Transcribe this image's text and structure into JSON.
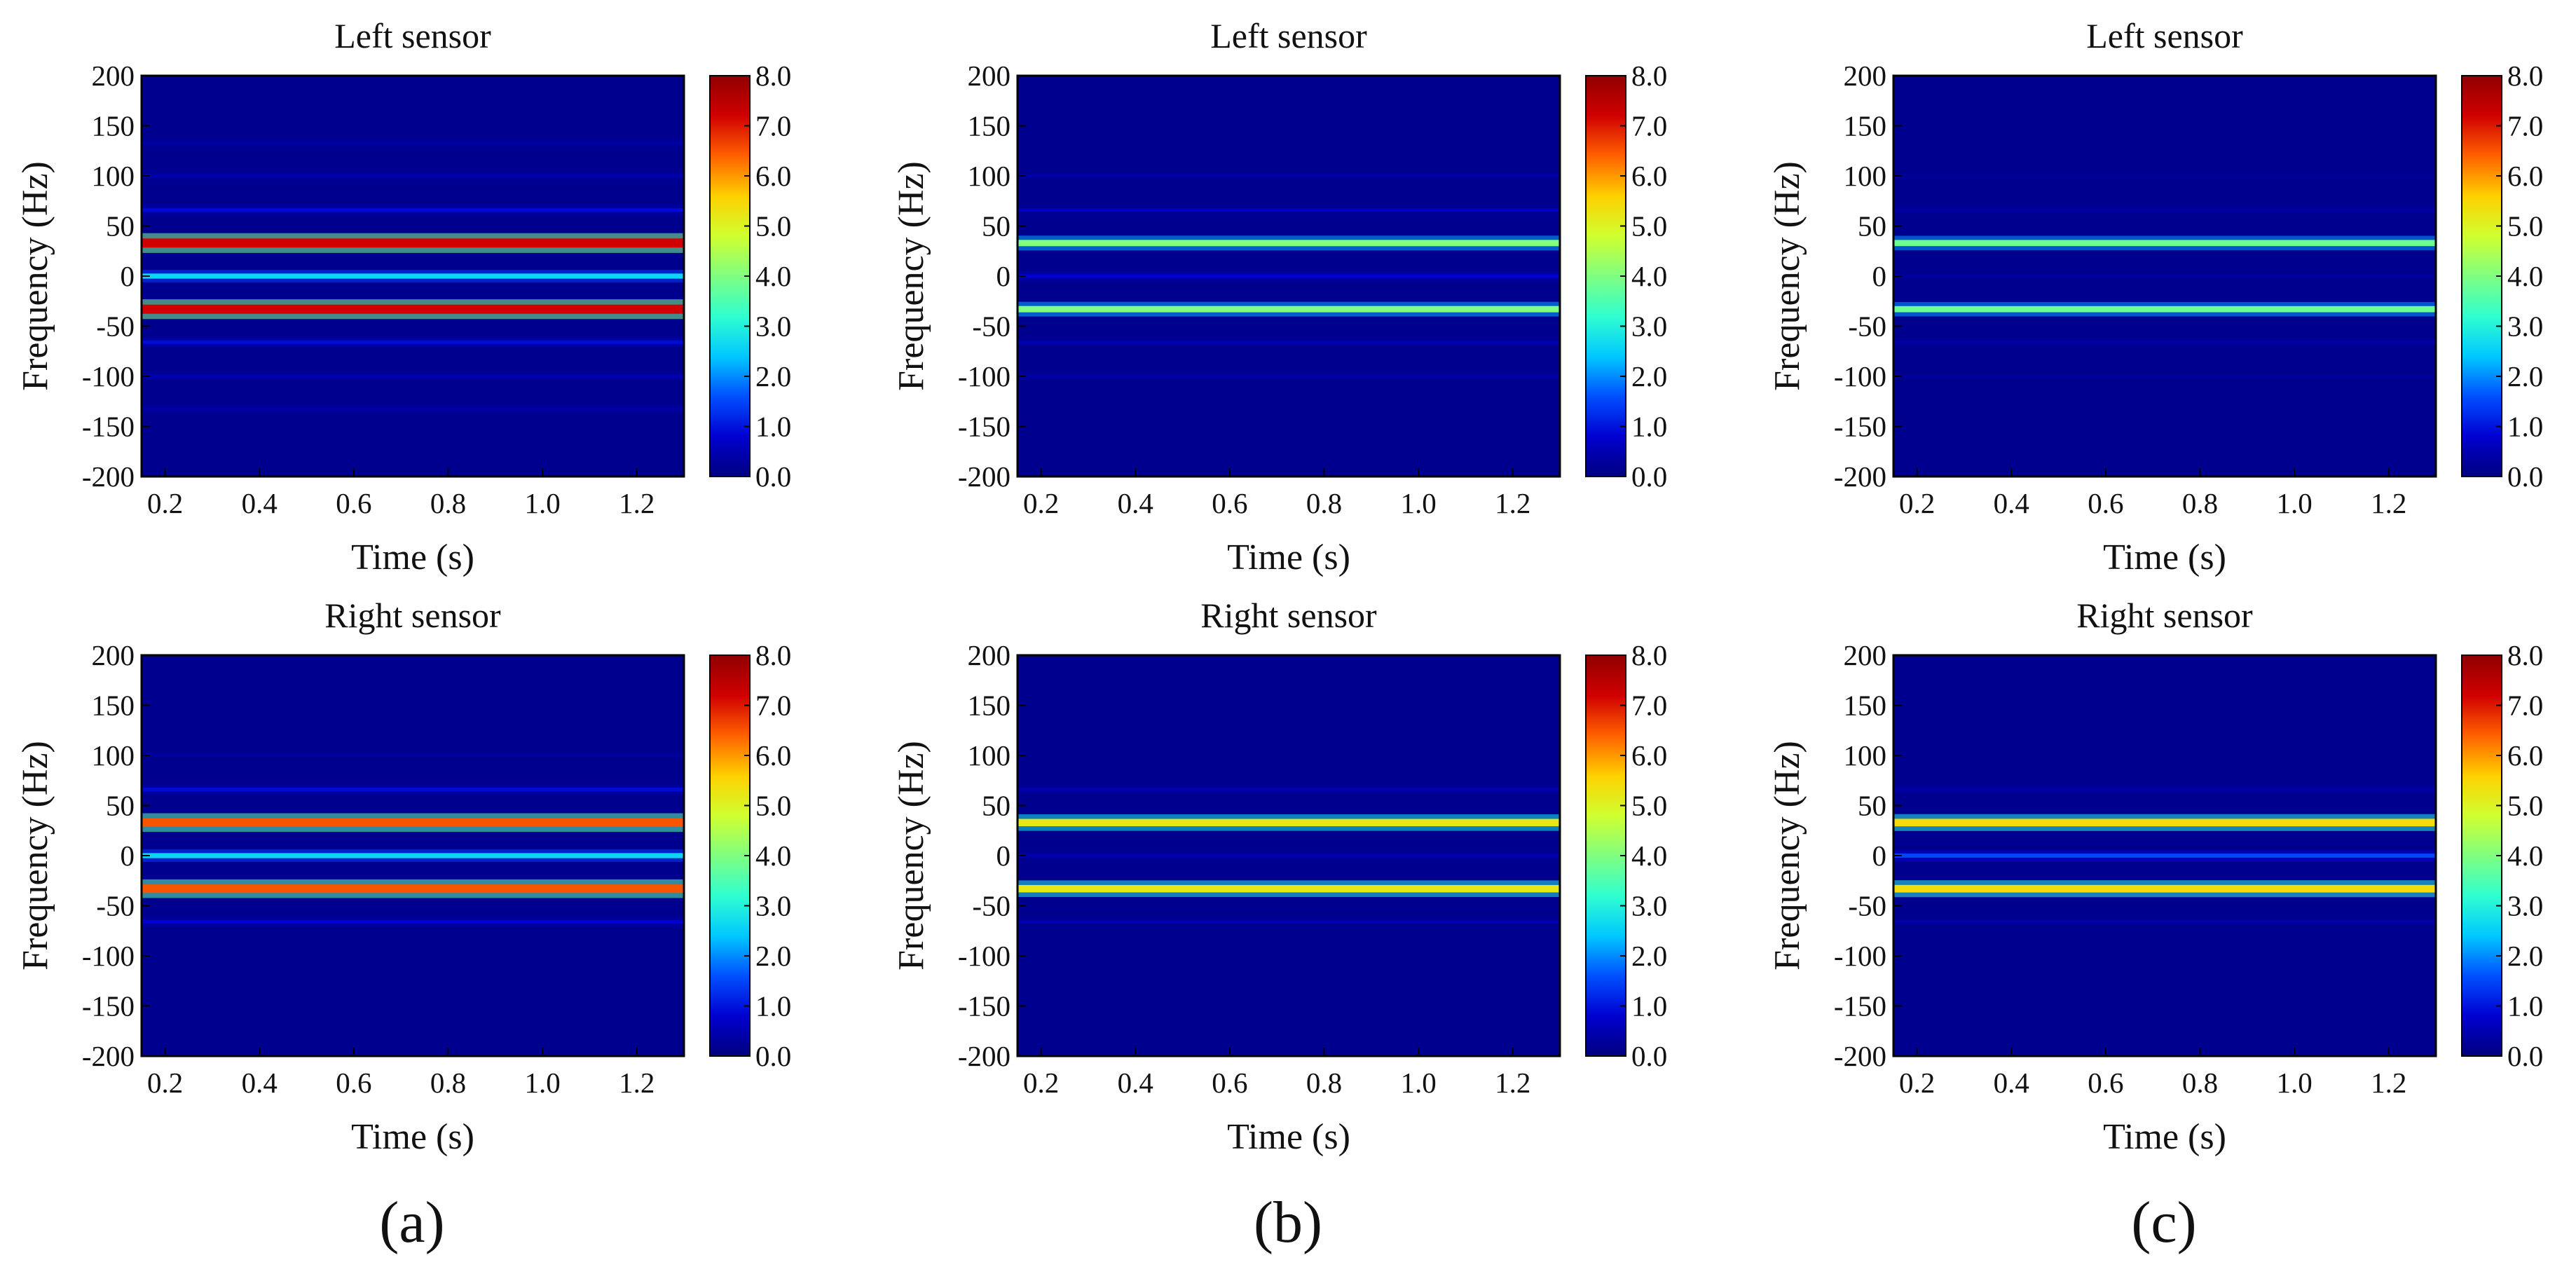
{
  "figure": {
    "panel_labels": [
      "(a)",
      "(b)",
      "(c)"
    ]
  },
  "colors": {
    "background": "#00008f",
    "colormap": [
      "#00007f",
      "#0000d0",
      "#0050ff",
      "#00c8ff",
      "#30ffd0",
      "#80ff80",
      "#d0ff30",
      "#ffd000",
      "#ff6000",
      "#d00000",
      "#900000"
    ]
  },
  "chart_data": [
    {
      "type": "heatmap",
      "id": "a-left",
      "column": "a",
      "row": "top",
      "title": "Left sensor",
      "xlabel": "Time (s)",
      "ylabel": "Frequency (Hz)",
      "xlim": [
        0.15,
        1.3
      ],
      "ylim": [
        -200,
        200
      ],
      "xticks": [
        "0.2",
        "0.4",
        "0.6",
        "0.8",
        "1.0",
        "1.2"
      ],
      "xtick_values": [
        0.2,
        0.4,
        0.6,
        0.8,
        1.0,
        1.2
      ],
      "yticks": [
        "200",
        "150",
        "100",
        "50",
        "0",
        "-50",
        "-100",
        "-150",
        "-200"
      ],
      "ytick_values": [
        200,
        150,
        100,
        50,
        0,
        -50,
        -100,
        -150,
        -200
      ],
      "colorbar": {
        "min": 0,
        "max": 8,
        "ticks": [
          "8.0",
          "7.0",
          "6.0",
          "5.0",
          "4.0",
          "3.0",
          "2.0",
          "1.0",
          "0.0"
        ],
        "tick_values": [
          8,
          7,
          6,
          5,
          4,
          3,
          2,
          1,
          0
        ]
      },
      "bands": [
        {
          "freq": 33,
          "value": 7.2
        },
        {
          "freq": 0,
          "value": 2.6
        },
        {
          "freq": -33,
          "value": 7.2
        },
        {
          "freq": 66,
          "value": 0.9
        },
        {
          "freq": -66,
          "value": 0.9
        },
        {
          "freq": 100,
          "value": 0.5
        },
        {
          "freq": -100,
          "value": 0.5
        },
        {
          "freq": 133,
          "value": 0.4
        },
        {
          "freq": -133,
          "value": 0.4
        }
      ]
    },
    {
      "type": "heatmap",
      "id": "b-left",
      "column": "b",
      "row": "top",
      "title": "Left sensor",
      "xlabel": "Time (s)",
      "ylabel": "Frequency (Hz)",
      "xlim": [
        0.15,
        1.3
      ],
      "ylim": [
        -200,
        200
      ],
      "xticks": [
        "0.2",
        "0.4",
        "0.6",
        "0.8",
        "1.0",
        "1.2"
      ],
      "xtick_values": [
        0.2,
        0.4,
        0.6,
        0.8,
        1.0,
        1.2
      ],
      "yticks": [
        "200",
        "150",
        "100",
        "50",
        "0",
        "-50",
        "-100",
        "-150",
        "-200"
      ],
      "ytick_values": [
        200,
        150,
        100,
        50,
        0,
        -50,
        -100,
        -150,
        -200
      ],
      "colorbar": {
        "min": 0,
        "max": 8,
        "ticks": [
          "8.0",
          "7.0",
          "6.0",
          "5.0",
          "4.0",
          "3.0",
          "2.0",
          "1.0",
          "0.0"
        ],
        "tick_values": [
          8,
          7,
          6,
          5,
          4,
          3,
          2,
          1,
          0
        ]
      },
      "bands": [
        {
          "freq": 33,
          "value": 4.0
        },
        {
          "freq": -33,
          "value": 4.0
        },
        {
          "freq": 0,
          "value": 0.8
        },
        {
          "freq": 66,
          "value": 0.6
        },
        {
          "freq": -66,
          "value": 0.5
        },
        {
          "freq": 100,
          "value": 0.4
        },
        {
          "freq": -100,
          "value": 0.4
        }
      ]
    },
    {
      "type": "heatmap",
      "id": "c-left",
      "column": "c",
      "row": "top",
      "title": "Left sensor",
      "xlabel": "Time (s)",
      "ylabel": "Frequency (Hz)",
      "xlim": [
        0.15,
        1.3
      ],
      "ylim": [
        -200,
        200
      ],
      "xticks": [
        "0.2",
        "0.4",
        "0.6",
        "0.8",
        "1.0",
        "1.2"
      ],
      "xtick_values": [
        0.2,
        0.4,
        0.6,
        0.8,
        1.0,
        1.2
      ],
      "yticks": [
        "200",
        "150",
        "100",
        "50",
        "0",
        "-50",
        "-100",
        "-150",
        "-200"
      ],
      "ytick_values": [
        200,
        150,
        100,
        50,
        0,
        -50,
        -100,
        -150,
        -200
      ],
      "colorbar": {
        "min": 0,
        "max": 8,
        "ticks": [
          "8.0",
          "7.0",
          "6.0",
          "5.0",
          "4.0",
          "3.0",
          "2.0",
          "1.0",
          "0.0"
        ],
        "tick_values": [
          8,
          7,
          6,
          5,
          4,
          3,
          2,
          1,
          0
        ]
      },
      "bands": [
        {
          "freq": 33,
          "value": 3.8
        },
        {
          "freq": -33,
          "value": 3.8
        },
        {
          "freq": 0,
          "value": 0.3
        },
        {
          "freq": 66,
          "value": 0.4
        },
        {
          "freq": -66,
          "value": 0.4
        },
        {
          "freq": 100,
          "value": 0.3
        },
        {
          "freq": -100,
          "value": 0.3
        }
      ]
    },
    {
      "type": "heatmap",
      "id": "a-right",
      "column": "a",
      "row": "bottom",
      "title": "Right sensor",
      "xlabel": "Time (s)",
      "ylabel": "Frequency (Hz)",
      "xlim": [
        0.15,
        1.3
      ],
      "ylim": [
        -200,
        200
      ],
      "xticks": [
        "0.2",
        "0.4",
        "0.6",
        "0.8",
        "1.0",
        "1.2"
      ],
      "xtick_values": [
        0.2,
        0.4,
        0.6,
        0.8,
        1.0,
        1.2
      ],
      "yticks": [
        "200",
        "150",
        "100",
        "50",
        "0",
        "-50",
        "-100",
        "-150",
        "-200"
      ],
      "ytick_values": [
        200,
        150,
        100,
        50,
        0,
        -50,
        -100,
        -150,
        -200
      ],
      "colorbar": {
        "min": 0,
        "max": 8,
        "ticks": [
          "8.0",
          "7.0",
          "6.0",
          "5.0",
          "4.0",
          "3.0",
          "2.0",
          "1.0",
          "0.0"
        ],
        "tick_values": [
          8,
          7,
          6,
          5,
          4,
          3,
          2,
          1,
          0
        ]
      },
      "bands": [
        {
          "freq": 33,
          "value": 6.5
        },
        {
          "freq": 0,
          "value": 2.6
        },
        {
          "freq": -33,
          "value": 6.5
        },
        {
          "freq": 66,
          "value": 0.9
        },
        {
          "freq": -66,
          "value": 0.8
        },
        {
          "freq": 100,
          "value": 0.3
        }
      ]
    },
    {
      "type": "heatmap",
      "id": "b-right",
      "column": "b",
      "row": "bottom",
      "title": "Right sensor",
      "xlabel": "Time (s)",
      "ylabel": "Frequency (Hz)",
      "xlim": [
        0.15,
        1.3
      ],
      "ylim": [
        -200,
        200
      ],
      "xticks": [
        "0.2",
        "0.4",
        "0.6",
        "0.8",
        "1.0",
        "1.2"
      ],
      "xtick_values": [
        0.2,
        0.4,
        0.6,
        0.8,
        1.0,
        1.2
      ],
      "yticks": [
        "200",
        "150",
        "100",
        "50",
        "0",
        "-50",
        "-100",
        "-150",
        "-200"
      ],
      "ytick_values": [
        200,
        150,
        100,
        50,
        0,
        -50,
        -100,
        -150,
        -200
      ],
      "colorbar": {
        "min": 0,
        "max": 8,
        "ticks": [
          "8.0",
          "7.0",
          "6.0",
          "5.0",
          "4.0",
          "3.0",
          "2.0",
          "1.0",
          "0.0"
        ],
        "tick_values": [
          8,
          7,
          6,
          5,
          4,
          3,
          2,
          1,
          0
        ]
      },
      "bands": [
        {
          "freq": 33,
          "value": 5.2
        },
        {
          "freq": -33,
          "value": 5.2
        },
        {
          "freq": 0,
          "value": 0.5
        },
        {
          "freq": 66,
          "value": 0.5
        },
        {
          "freq": -66,
          "value": 0.5
        }
      ]
    },
    {
      "type": "heatmap",
      "id": "c-right",
      "column": "c",
      "row": "bottom",
      "title": "Right sensor",
      "xlabel": "Time (s)",
      "ylabel": "Frequency (Hz)",
      "xlim": [
        0.15,
        1.3
      ],
      "ylim": [
        -200,
        200
      ],
      "xticks": [
        "0.2",
        "0.4",
        "0.6",
        "0.8",
        "1.0",
        "1.2"
      ],
      "xtick_values": [
        0.2,
        0.4,
        0.6,
        0.8,
        1.0,
        1.2
      ],
      "yticks": [
        "200",
        "150",
        "100",
        "50",
        "0",
        "-50",
        "-100",
        "-150",
        "-200"
      ],
      "ytick_values": [
        200,
        150,
        100,
        50,
        0,
        -50,
        -100,
        -150,
        -200
      ],
      "colorbar": {
        "min": 0,
        "max": 8,
        "ticks": [
          "8.0",
          "7.0",
          "6.0",
          "5.0",
          "4.0",
          "3.0",
          "2.0",
          "1.0",
          "0.0"
        ],
        "tick_values": [
          8,
          7,
          6,
          5,
          4,
          3,
          2,
          1,
          0
        ]
      },
      "bands": [
        {
          "freq": 33,
          "value": 5.4
        },
        {
          "freq": -33,
          "value": 5.4
        },
        {
          "freq": 0,
          "value": 1.5
        },
        {
          "freq": 66,
          "value": 0.4
        },
        {
          "freq": -66,
          "value": 0.4
        }
      ]
    }
  ]
}
